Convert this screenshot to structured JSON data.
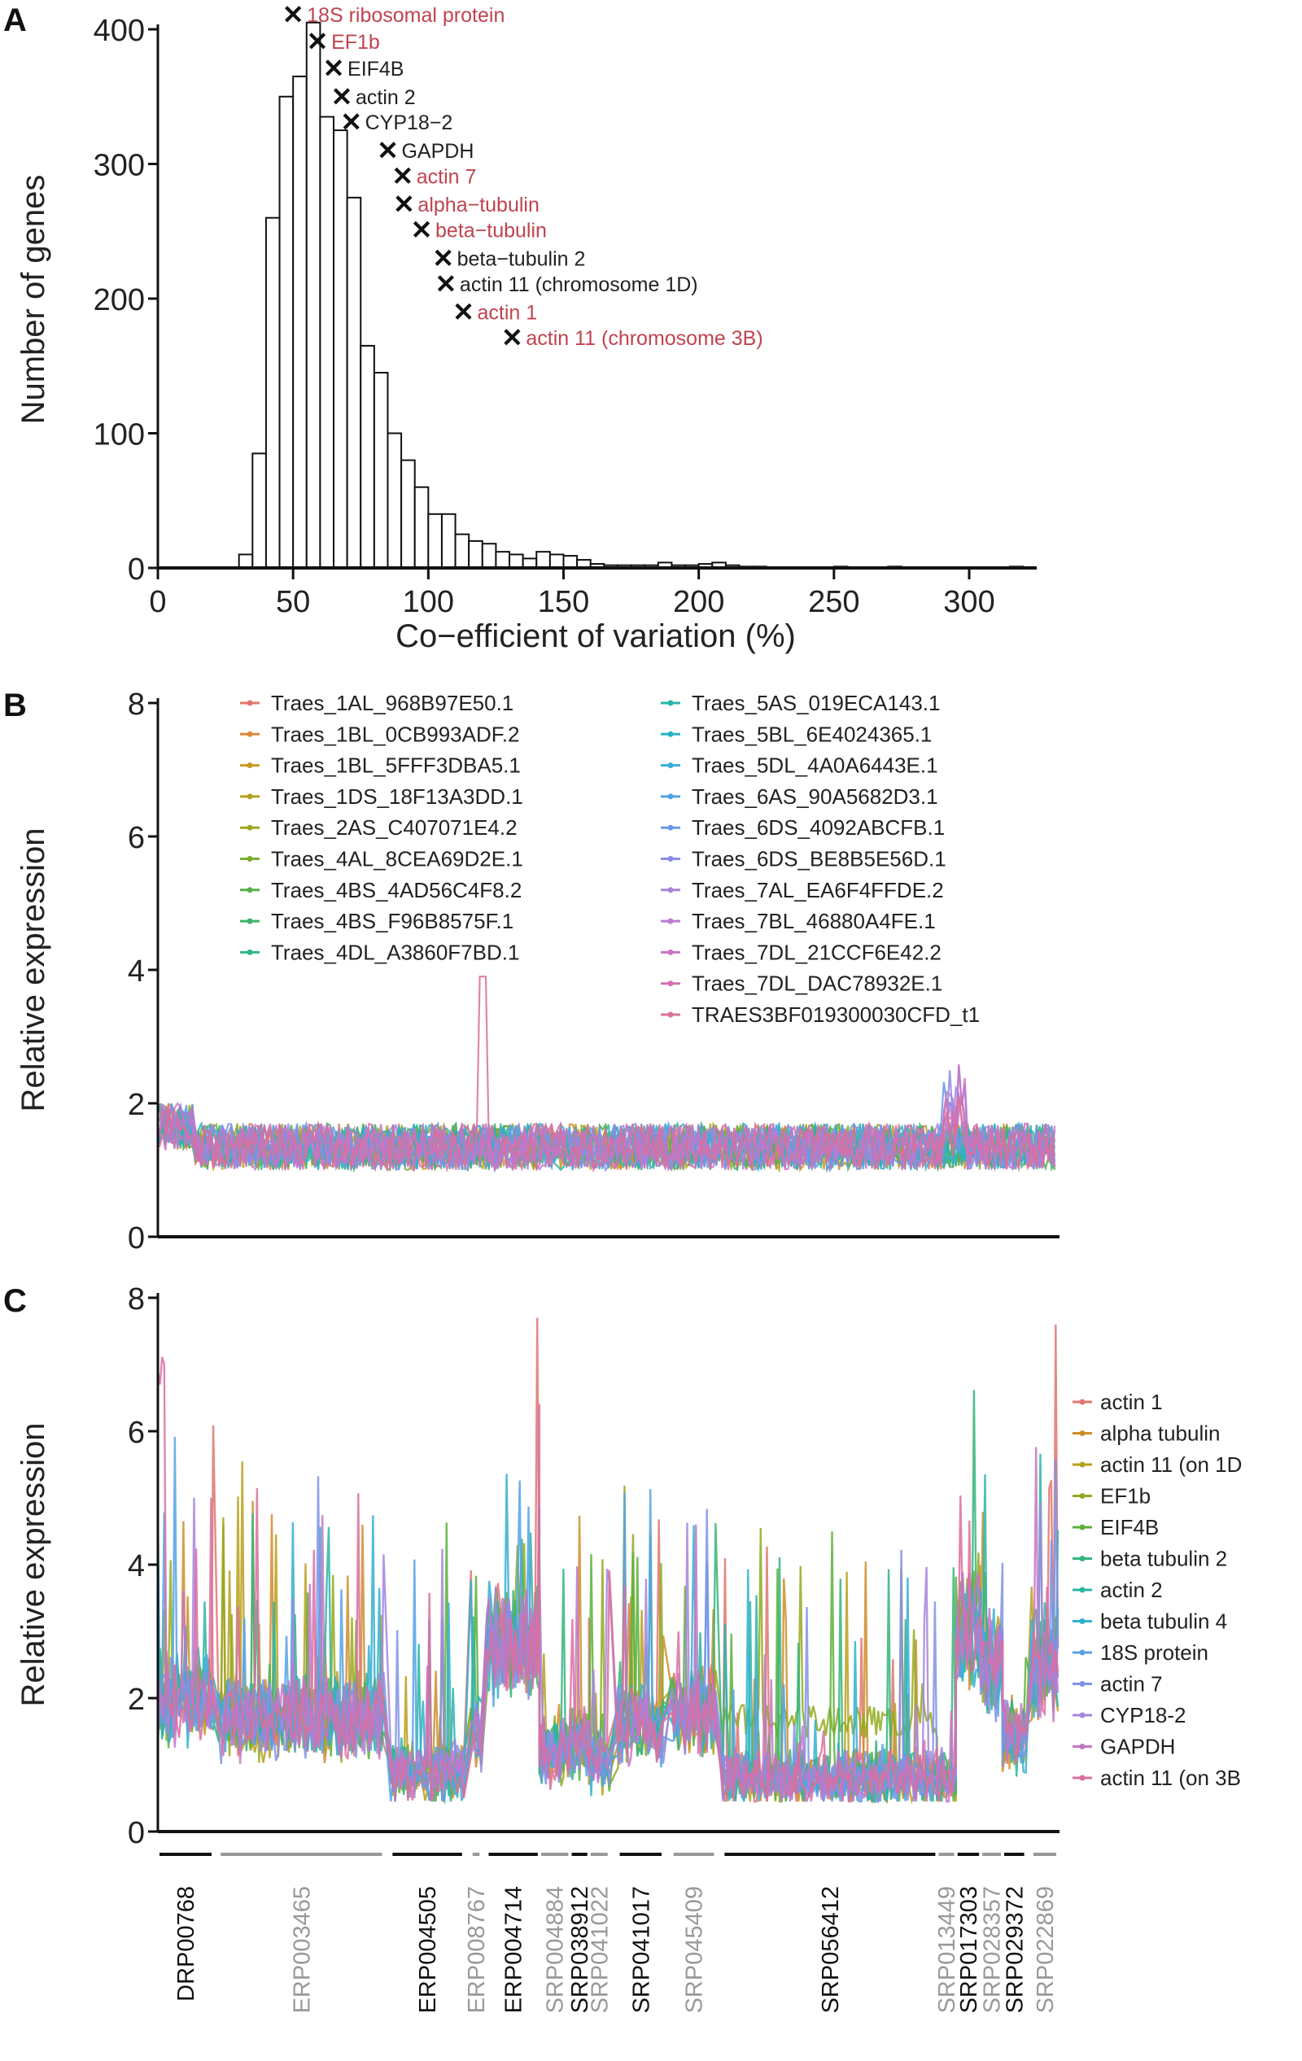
{
  "panels": {
    "a": "A",
    "b": "B",
    "c": "C"
  },
  "chart_data": [
    {
      "type": "bar",
      "panel": "A",
      "xlabel": "Co−efficient of variation (%)",
      "ylabel": "Number of genes",
      "xlim": [
        0,
        325
      ],
      "ylim": [
        0,
        400
      ],
      "xticks": [
        "0",
        "50",
        "100",
        "150",
        "200",
        "250",
        "300"
      ],
      "yticks": [
        "0",
        "100",
        "200",
        "300",
        "400"
      ],
      "bin_width": 5,
      "bin_starts": [
        30,
        35,
        40,
        45,
        50,
        55,
        60,
        65,
        70,
        75,
        80,
        85,
        90,
        95,
        100,
        105,
        110,
        115,
        120,
        125,
        130,
        135,
        140,
        145,
        150,
        155,
        160,
        165,
        170,
        175,
        180,
        185,
        190,
        195,
        200,
        205,
        210,
        215,
        220,
        250,
        270,
        315
      ],
      "values": [
        10,
        85,
        260,
        350,
        365,
        405,
        335,
        325,
        275,
        165,
        145,
        100,
        80,
        60,
        40,
        40,
        25,
        20,
        18,
        12,
        10,
        7,
        12,
        10,
        9,
        6,
        3,
        2,
        2,
        2,
        2,
        4,
        2,
        2,
        3,
        4,
        2,
        1,
        1,
        1,
        1,
        1
      ],
      "annotations": [
        {
          "label": "18S ribosomal protein",
          "cv": 50,
          "y": 411,
          "color": "#c0434f"
        },
        {
          "label": "EF1b",
          "cv": 59,
          "y": 391,
          "color": "#c0434f"
        },
        {
          "label": "EIF4B",
          "cv": 65,
          "y": 371,
          "color": "#222222"
        },
        {
          "label": "actin 2",
          "cv": 68,
          "y": 350,
          "color": "#222222"
        },
        {
          "label": "CYP18−2",
          "cv": 71.5,
          "y": 331,
          "color": "#222222"
        },
        {
          "label": "GAPDH",
          "cv": 85,
          "y": 310,
          "color": "#222222"
        },
        {
          "label": "actin 7",
          "cv": 90.5,
          "y": 291,
          "color": "#c0434f"
        },
        {
          "label": "alpha−tubulin",
          "cv": 91,
          "y": 270,
          "color": "#c0434f"
        },
        {
          "label": "beta−tubulin",
          "cv": 97.5,
          "y": 251,
          "color": "#c0434f"
        },
        {
          "label": "beta−tubulin 2",
          "cv": 105.5,
          "y": 230,
          "color": "#222222"
        },
        {
          "label": "actin 11 (chromosome 1D)",
          "cv": 106.5,
          "y": 211,
          "color": "#222222"
        },
        {
          "label": "actin 1",
          "cv": 113,
          "y": 190,
          "color": "#c0434f"
        },
        {
          "label": "actin 11 (chromosome 3B)",
          "cv": 131,
          "y": 171,
          "color": "#c0434f"
        }
      ]
    },
    {
      "type": "line",
      "panel": "B",
      "ylabel": "Relative expression",
      "ylim": [
        0,
        8
      ],
      "yticks": [
        "0",
        "2",
        "4",
        "6",
        "8"
      ],
      "typical_level": 1.35,
      "peak": {
        "value": 3.9,
        "position_fraction": 0.36
      },
      "legend": "top",
      "series": [
        {
          "name": "Traes_1AL_968B97E50.1",
          "color": "#e0766e"
        },
        {
          "name": "Traes_1BL_0CB993ADF.2",
          "color": "#d98a3c"
        },
        {
          "name": "Traes_1BL_5FFF3DBA5.1",
          "color": "#c79a1e"
        },
        {
          "name": "Traes_1DS_18F13A3DD.1",
          "color": "#b3a21c"
        },
        {
          "name": "Traes_2AS_C407071E4.2",
          "color": "#9aa81e"
        },
        {
          "name": "Traes_4AL_8CEA69D2E.1",
          "color": "#7cae2e"
        },
        {
          "name": "Traes_4BS_4AD56C4F8.2",
          "color": "#52b047"
        },
        {
          "name": "Traes_4BS_F96B8575F.1",
          "color": "#3db36a"
        },
        {
          "name": "Traes_4DL_A3860F7BD.1",
          "color": "#2fb68e"
        },
        {
          "name": "Traes_5AS_019ECA143.1",
          "color": "#27b6ab"
        },
        {
          "name": "Traes_5BL_6E4024365.1",
          "color": "#25b3c4"
        },
        {
          "name": "Traes_5DL_4A0A6443E.1",
          "color": "#3aadd8"
        },
        {
          "name": "Traes_6AS_90A5682D3.1",
          "color": "#4fa3e3"
        },
        {
          "name": "Traes_6DS_4092ABCFB.1",
          "color": "#6a98e8"
        },
        {
          "name": "Traes_6DS_BE8B5E56D.1",
          "color": "#8a8de6"
        },
        {
          "name": "Traes_7AL_EA6F4FFDE.2",
          "color": "#a584dd"
        },
        {
          "name": "Traes_7BL_46880A4FE.1",
          "color": "#ba7bd2"
        },
        {
          "name": "Traes_7DL_21CCF6E42.2",
          "color": "#c874c3"
        },
        {
          "name": "Traes_7DL_DAC78932E.1",
          "color": "#d470b0"
        },
        {
          "name": "TRAES3BF019300030CFD_t1",
          "color": "#dc6f9a"
        }
      ]
    },
    {
      "type": "line",
      "panel": "C",
      "ylabel": "Relative expression",
      "ylim": [
        0,
        8
      ],
      "yticks": [
        "0",
        "2",
        "4",
        "6",
        "8"
      ],
      "legend": "right",
      "series": [
        {
          "name": "actin 1",
          "color": "#e0766e"
        },
        {
          "name": "alpha tubulin",
          "color": "#cf8d2a"
        },
        {
          "name": "actin 11 (on 1D",
          "color": "#b9a01c"
        },
        {
          "name": "EF1b",
          "color": "#93aa1e"
        },
        {
          "name": "EIF4B",
          "color": "#5cb03c"
        },
        {
          "name": "beta tubulin 2",
          "color": "#35b47a"
        },
        {
          "name": "actin 2",
          "color": "#2ab5a5"
        },
        {
          "name": "beta tubulin 4",
          "color": "#33afd0"
        },
        {
          "name": "18S protein",
          "color": "#56a2e4"
        },
        {
          "name": "actin 7",
          "color": "#7f93e6"
        },
        {
          "name": "CYP18-2",
          "color": "#a585dc"
        },
        {
          "name": "GAPDH",
          "color": "#c475c6"
        },
        {
          "name": "actin 11 (on 3B",
          "color": "#db6f9f"
        }
      ],
      "studies": [
        {
          "id": "DRP00768",
          "color": "#111111",
          "range": [
            0,
            0.038
          ],
          "typical_level": 2.0
        },
        {
          "id": "ERP003465",
          "color": "#999999",
          "range": [
            0.042,
            0.155
          ],
          "typical_level": 1.7
        },
        {
          "id": "ERP004505",
          "color": "#111111",
          "range": [
            0.16,
            0.21
          ],
          "typical_level": 0.9
        },
        {
          "id": "ERP008767",
          "color": "#999999",
          "range": [
            0.215,
            0.222
          ],
          "typical_level": 1.5
        },
        {
          "id": "ERP004714",
          "color": "#111111",
          "range": [
            0.226,
            0.262
          ],
          "typical_level": 2.8
        },
        {
          "id": "SRP004884",
          "color": "#999999",
          "range": [
            0.262,
            0.283
          ],
          "typical_level": 1.2
        },
        {
          "id": "SRP038912",
          "color": "#111111",
          "range": [
            0.283,
            0.296
          ],
          "typical_level": 1.3
        },
        {
          "id": "SRP041022",
          "color": "#999999",
          "range": [
            0.296,
            0.31
          ],
          "typical_level": 1.1
        },
        {
          "id": "SRP041017",
          "color": "#111111",
          "range": [
            0.316,
            0.347
          ],
          "typical_level": 1.6
        },
        {
          "id": "SRP045409",
          "color": "#999999",
          "range": [
            0.353,
            0.383
          ],
          "typical_level": 1.8
        },
        {
          "id": "SRP056412",
          "color": "#111111",
          "range": [
            0.388,
            0.535
          ],
          "typical_level": 0.8
        },
        {
          "id": "SRP013449",
          "color": "#999999",
          "range": [
            0.535,
            0.548
          ],
          "typical_level": 0.8
        },
        {
          "id": "SRP017303",
          "color": "#111111",
          "range": [
            0.548,
            0.565
          ],
          "typical_level": 3.0
        },
        {
          "id": "SRP028357",
          "color": "#999999",
          "range": [
            0.565,
            0.58
          ],
          "typical_level": 2.5
        },
        {
          "id": "SRP029372",
          "color": "#111111",
          "range": [
            0.58,
            0.596
          ],
          "typical_level": 1.4
        },
        {
          "id": "SRP022869",
          "color": "#999999",
          "range": [
            0.6,
            0.618
          ],
          "typical_level": 2.5
        }
      ]
    }
  ]
}
